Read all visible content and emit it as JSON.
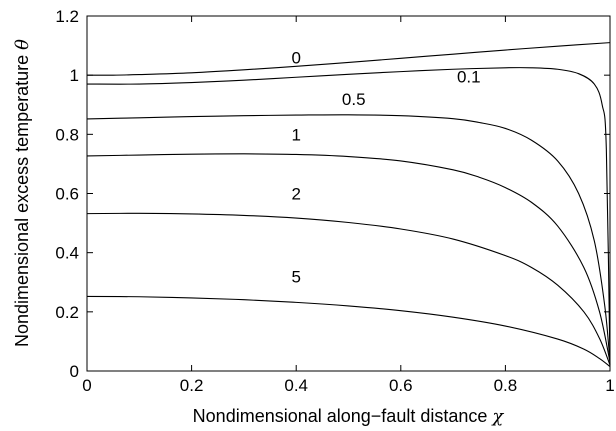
{
  "chart_data": {
    "type": "line",
    "title": "",
    "xlabel": "Nondimensional along−fault distance",
    "xlabel_symbol": "χ",
    "ylabel": "Nondimensional excess temperature",
    "ylabel_symbol": "θ",
    "xlim": [
      0,
      1
    ],
    "ylim": [
      0,
      1.2
    ],
    "xticks": [
      0,
      0.2,
      0.4,
      0.6,
      0.8,
      1
    ],
    "yticks": [
      0,
      0.2,
      0.4,
      0.6,
      0.8,
      1,
      1.2
    ],
    "xtick_labels": [
      "0",
      "0.2",
      "0.4",
      "0.6",
      "0.8",
      "1"
    ],
    "ytick_labels": [
      "0",
      "0.2",
      "0.4",
      "0.6",
      "0.8",
      "1",
      "1.2"
    ],
    "grid": false,
    "line_color": "#000000",
    "series": [
      {
        "name": "0",
        "label_at": [
          0.4,
          1.04
        ],
        "x": [
          0,
          0.05,
          0.1,
          0.2,
          0.3,
          0.4,
          0.5,
          0.6,
          0.7,
          0.8,
          0.9,
          1.0
        ],
        "y": [
          1.0,
          1.0,
          1.002,
          1.008,
          1.018,
          1.03,
          1.043,
          1.057,
          1.071,
          1.085,
          1.098,
          1.11
        ]
      },
      {
        "name": "0.1",
        "label_at": [
          0.73,
          0.975
        ],
        "x": [
          0,
          0.1,
          0.2,
          0.3,
          0.4,
          0.5,
          0.6,
          0.7,
          0.8,
          0.85,
          0.9,
          0.94,
          0.97,
          0.985,
          0.993,
          1.0
        ],
        "y": [
          0.97,
          0.97,
          0.975,
          0.983,
          0.993,
          1.003,
          1.012,
          1.02,
          1.025,
          1.025,
          1.02,
          1.005,
          0.97,
          0.9,
          0.75,
          0.02
        ]
      },
      {
        "name": "0.5",
        "label_at": [
          0.51,
          0.9
        ],
        "x": [
          0,
          0.1,
          0.2,
          0.3,
          0.4,
          0.5,
          0.6,
          0.7,
          0.75,
          0.8,
          0.85,
          0.9,
          0.94,
          0.97,
          0.99,
          1.0
        ],
        "y": [
          0.852,
          0.856,
          0.86,
          0.863,
          0.865,
          0.866,
          0.863,
          0.853,
          0.84,
          0.82,
          0.78,
          0.71,
          0.6,
          0.44,
          0.22,
          0.03
        ]
      },
      {
        "name": "1",
        "label_at": [
          0.4,
          0.78
        ],
        "x": [
          0,
          0.1,
          0.2,
          0.3,
          0.4,
          0.5,
          0.6,
          0.7,
          0.75,
          0.8,
          0.85,
          0.9,
          0.95,
          0.98,
          1.0
        ],
        "y": [
          0.727,
          0.73,
          0.733,
          0.734,
          0.732,
          0.725,
          0.71,
          0.68,
          0.655,
          0.62,
          0.57,
          0.49,
          0.35,
          0.2,
          0.03
        ]
      },
      {
        "name": "2",
        "label_at": [
          0.4,
          0.58
        ],
        "x": [
          0,
          0.1,
          0.2,
          0.3,
          0.4,
          0.5,
          0.6,
          0.7,
          0.8,
          0.85,
          0.9,
          0.95,
          0.98,
          1.0
        ],
        "y": [
          0.532,
          0.533,
          0.531,
          0.526,
          0.517,
          0.502,
          0.48,
          0.446,
          0.39,
          0.35,
          0.29,
          0.2,
          0.11,
          0.02
        ]
      },
      {
        "name": "5",
        "label_at": [
          0.4,
          0.3
        ],
        "x": [
          0,
          0.1,
          0.2,
          0.3,
          0.4,
          0.5,
          0.6,
          0.7,
          0.8,
          0.9,
          0.95,
          0.98,
          1.0
        ],
        "y": [
          0.252,
          0.251,
          0.247,
          0.241,
          0.232,
          0.22,
          0.204,
          0.182,
          0.152,
          0.108,
          0.074,
          0.042,
          0.015
        ]
      }
    ]
  }
}
